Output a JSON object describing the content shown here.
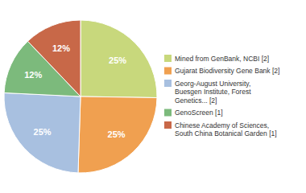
{
  "chart_data": {
    "type": "pie",
    "categories": [
      "Mined from GenBank, NCBI [2]",
      "Gujarat Biodiversity Gene Bank [2]",
      "Georg-August University,\nBuesgen Institute, Forest\nGenetics... [2]",
      "GenoScreen [1]",
      "Chinese Academy of Sciences,\nSouth China Botanical Garden [1]"
    ],
    "values": [
      25,
      25,
      25,
      12,
      12
    ],
    "value_labels": [
      "25%",
      "25%",
      "25%",
      "12%",
      "12%"
    ],
    "colors": [
      "#c8d87c",
      "#f0a050",
      "#a8c0e0",
      "#7cba7c",
      "#c86848"
    ],
    "data_labels": true,
    "legend": "right"
  }
}
